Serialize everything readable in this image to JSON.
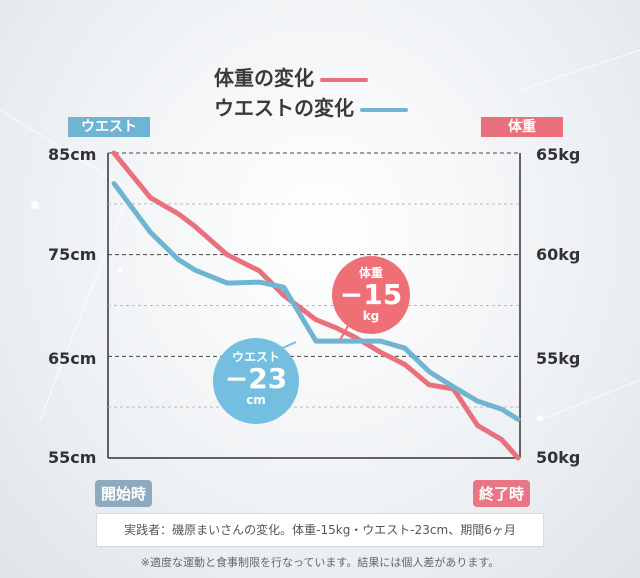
{
  "colors": {
    "weight": "#e8717d",
    "waist": "#6fb5d3",
    "start_badge": "#8eaabd",
    "end_badge": "#ea7585"
  },
  "legend": {
    "weight_label": "体重の変化",
    "waist_label": "ウエストの変化"
  },
  "axis_tags": {
    "left": "ウエスト",
    "right": "体重"
  },
  "badges": {
    "start": "開始時",
    "end": "終了時"
  },
  "bubbles": {
    "weight": {
      "label": "体重",
      "value": "−15",
      "unit": "kg"
    },
    "waist": {
      "label": "ウエスト",
      "value": "−23",
      "unit": "cm"
    }
  },
  "footnote": "実践者：磯原まいさんの変化。体重-15kg・ウエスト-23cm、期間6ヶ月",
  "disclaimer": "※適度な運動と食事制限を行なっています。結果には個人差があります。",
  "chart_data": {
    "type": "line",
    "left_axis": {
      "unit": "cm",
      "ylim": [
        55,
        85
      ],
      "ticks": [
        "85cm",
        "75cm",
        "65cm",
        "55cm"
      ]
    },
    "right_axis": {
      "unit": "kg",
      "ylim": [
        50,
        65
      ],
      "ticks": [
        "65kg",
        "60kg",
        "55kg",
        "50kg"
      ]
    },
    "x": [
      0,
      0.09,
      0.16,
      0.2,
      0.28,
      0.36,
      0.42,
      0.5,
      0.55,
      0.6,
      0.66,
      0.72,
      0.78,
      0.84,
      0.9,
      0.96,
      1.0
    ],
    "series": [
      {
        "name": "体重の変化",
        "axis": "right",
        "values": [
          65.0,
          62.8,
          62.0,
          61.4,
          60.0,
          59.2,
          58.0,
          56.8,
          56.4,
          55.9,
          55.2,
          54.6,
          53.6,
          53.4,
          51.6,
          50.9,
          50.0
        ]
      },
      {
        "name": "ウエストの変化",
        "axis": "left",
        "values": [
          82.0,
          77.2,
          74.5,
          73.5,
          72.2,
          72.3,
          71.8,
          66.5,
          66.5,
          66.5,
          66.5,
          65.8,
          63.5,
          62.0,
          60.6,
          59.8,
          58.8
        ]
      }
    ],
    "grid": "horizontal-dashed"
  }
}
